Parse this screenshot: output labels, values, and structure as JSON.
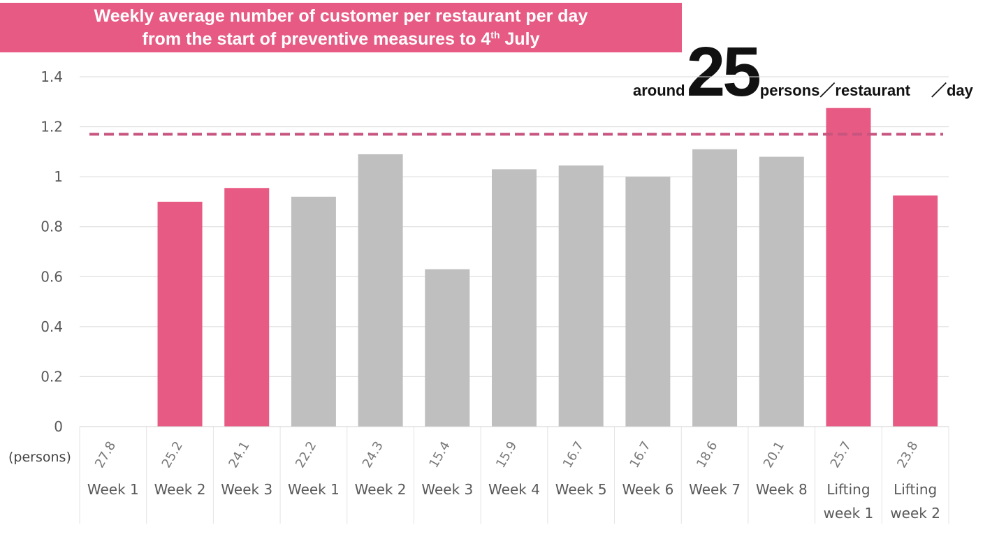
{
  "title": {
    "line1": "Weekly average number of customer per restaurant per day",
    "line2_prefix": "from the start of preventive measures to 4",
    "line2_sup": "th",
    "line2_suffix": " July"
  },
  "callout": {
    "prefix": "around",
    "number": "25",
    "persons_restaurant": "persons／restaurant",
    "day": "／day"
  },
  "colors": {
    "highlight": "#e75a84",
    "neutral": "#bfbfbf",
    "reference_line": "#c7557f",
    "grid": "#d9d9d9",
    "axis_text": "#595959"
  },
  "table_row_label": "(persons)",
  "chart_data": {
    "type": "bar",
    "categories": [
      "Week 1",
      "Week 2",
      "Week 3",
      "Week 1",
      "Week 2",
      "Week 3",
      "Week 4",
      "Week 5",
      "Week 6",
      "Week 7",
      "Week 8",
      "Lifting week 1",
      "Lifting week 2"
    ],
    "category_lines": [
      [
        "Week 1"
      ],
      [
        "Week 2"
      ],
      [
        "Week 3"
      ],
      [
        "Week 1"
      ],
      [
        "Week 2"
      ],
      [
        "Week 3"
      ],
      [
        "Week 4"
      ],
      [
        "Week 5"
      ],
      [
        "Week 6"
      ],
      [
        "Week 7"
      ],
      [
        "Week 8"
      ],
      [
        "Lifting",
        "week 1"
      ],
      [
        "Lifting",
        "week 2"
      ]
    ],
    "values": [
      0,
      0.9,
      0.955,
      0.92,
      1.09,
      0.63,
      1.03,
      1.045,
      1.0,
      1.11,
      1.08,
      1.275,
      0.925
    ],
    "persons": [
      "27.8",
      "25.2",
      "24.1",
      "22.2",
      "24.3",
      "15.4",
      "15.9",
      "16.7",
      "16.7",
      "18.6",
      "20.1",
      "25.7",
      "23.8"
    ],
    "highlighted": [
      true,
      true,
      true,
      false,
      false,
      false,
      false,
      false,
      false,
      false,
      false,
      true,
      true
    ],
    "ylim": [
      0,
      1.4
    ],
    "yticks": [
      "0",
      "0.2",
      "0.4",
      "0.6",
      "0.8",
      "1",
      "1.2",
      "1.4"
    ],
    "reference_line_value": 1.17,
    "grid": true
  }
}
